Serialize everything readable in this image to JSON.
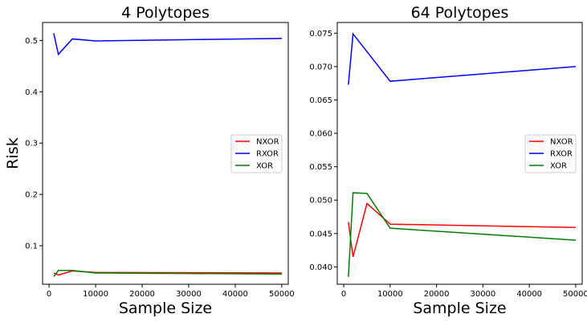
{
  "chart_data": [
    {
      "type": "line",
      "title": "4 Polytopes",
      "xlabel": "Sample Size",
      "ylabel": "Risk",
      "xlim": [
        -1400,
        51400
      ],
      "ylim": [
        0.025,
        0.535
      ],
      "xticks": [
        0,
        10000,
        20000,
        30000,
        40000,
        50000
      ],
      "yticks": [
        0.1,
        0.2,
        0.3,
        0.4,
        0.5
      ],
      "xtick_labels": [
        "0",
        "10000",
        "20000",
        "30000",
        "40000",
        "50000"
      ],
      "ytick_labels": [
        "0.1",
        "0.2",
        "0.3",
        "0.4",
        "0.5"
      ],
      "grid": false,
      "legend_position": "center-right",
      "series": [
        {
          "name": "NXOR",
          "color": "#ff0000",
          "x": [
            1000,
            2000,
            5000,
            10000,
            50000
          ],
          "y": [
            0.047,
            0.043,
            0.051,
            0.048,
            0.047
          ]
        },
        {
          "name": "RXOR",
          "color": "#0000ff",
          "x": [
            1000,
            2000,
            5000,
            10000,
            50000
          ],
          "y": [
            0.514,
            0.473,
            0.503,
            0.499,
            0.504
          ]
        },
        {
          "name": "XOR",
          "color": "#008000",
          "x": [
            1000,
            2000,
            5000,
            10000,
            50000
          ],
          "y": [
            0.04,
            0.052,
            0.052,
            0.047,
            0.045
          ]
        }
      ]
    },
    {
      "type": "line",
      "title": "64 Polytopes",
      "xlabel": "Sample Size",
      "ylabel": "",
      "xlim": [
        -1400,
        51400
      ],
      "ylim": [
        0.0374,
        0.0766
      ],
      "xticks": [
        0,
        10000,
        20000,
        30000,
        40000,
        50000
      ],
      "yticks": [
        0.04,
        0.045,
        0.05,
        0.055,
        0.06,
        0.065,
        0.07,
        0.075
      ],
      "xtick_labels": [
        "0",
        "10000",
        "20000",
        "30000",
        "40000",
        "50000"
      ],
      "ytick_labels": [
        "0.040",
        "0.045",
        "0.050",
        "0.055",
        "0.060",
        "0.065",
        "0.070",
        "0.075"
      ],
      "grid": false,
      "legend_position": "center-right",
      "series": [
        {
          "name": "NXOR",
          "color": "#ff0000",
          "x": [
            1000,
            2000,
            5000,
            10000,
            50000
          ],
          "y": [
            0.0467,
            0.0415,
            0.0495,
            0.0464,
            0.0459
          ]
        },
        {
          "name": "RXOR",
          "color": "#0000ff",
          "x": [
            1000,
            2000,
            5000,
            10000,
            50000
          ],
          "y": [
            0.0673,
            0.0749,
            null,
            0.0678,
            0.07
          ]
        },
        {
          "name": "XOR",
          "color": "#008000",
          "x": [
            1000,
            2000,
            5000,
            10000,
            50000
          ],
          "y": [
            0.0385,
            0.0511,
            0.051,
            0.0458,
            0.044
          ]
        }
      ]
    }
  ]
}
